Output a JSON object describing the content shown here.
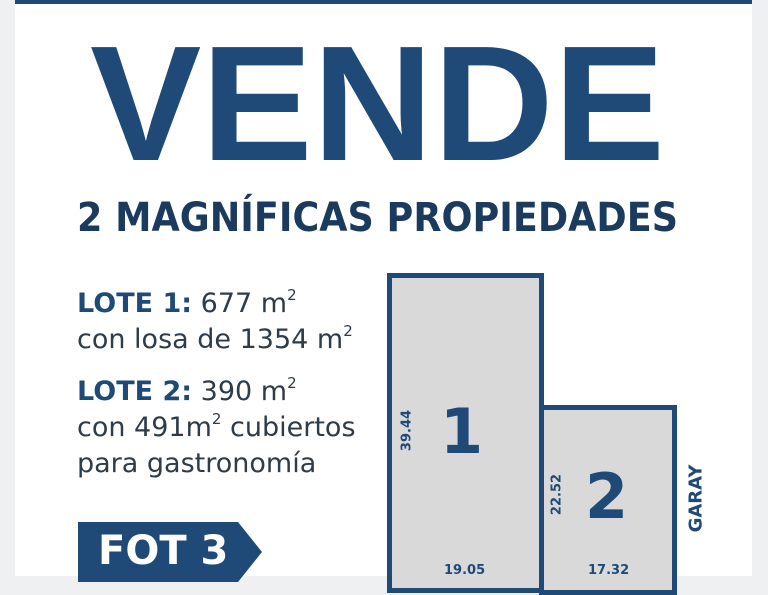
{
  "colors": {
    "brand_blue": "#1f4a78",
    "lot_fill": "#d9d9da",
    "text": "#2e3b48"
  },
  "headline": "VENDE",
  "subheadline": "2 MAGNÍFICAS PROPIEDADES",
  "lots": [
    {
      "label": "LOTE 1:",
      "area": "677 m",
      "area_sup": "2",
      "detail": "con losa de 1354 m",
      "detail_sup": "2"
    },
    {
      "label": "LOTE 2:",
      "area": "390 m",
      "area_sup": "2",
      "detail_a": "con 491m",
      "detail_sup": "2",
      "detail_b": " cubiertos",
      "detail_c": "para gastronomía"
    }
  ],
  "badge": "FOT 3",
  "plan": {
    "lot1": {
      "number": "1",
      "depth": "39.44",
      "front": "19.05"
    },
    "lot2": {
      "number": "2",
      "depth": "22.52",
      "front": "17.32"
    },
    "street": "GARAY"
  }
}
